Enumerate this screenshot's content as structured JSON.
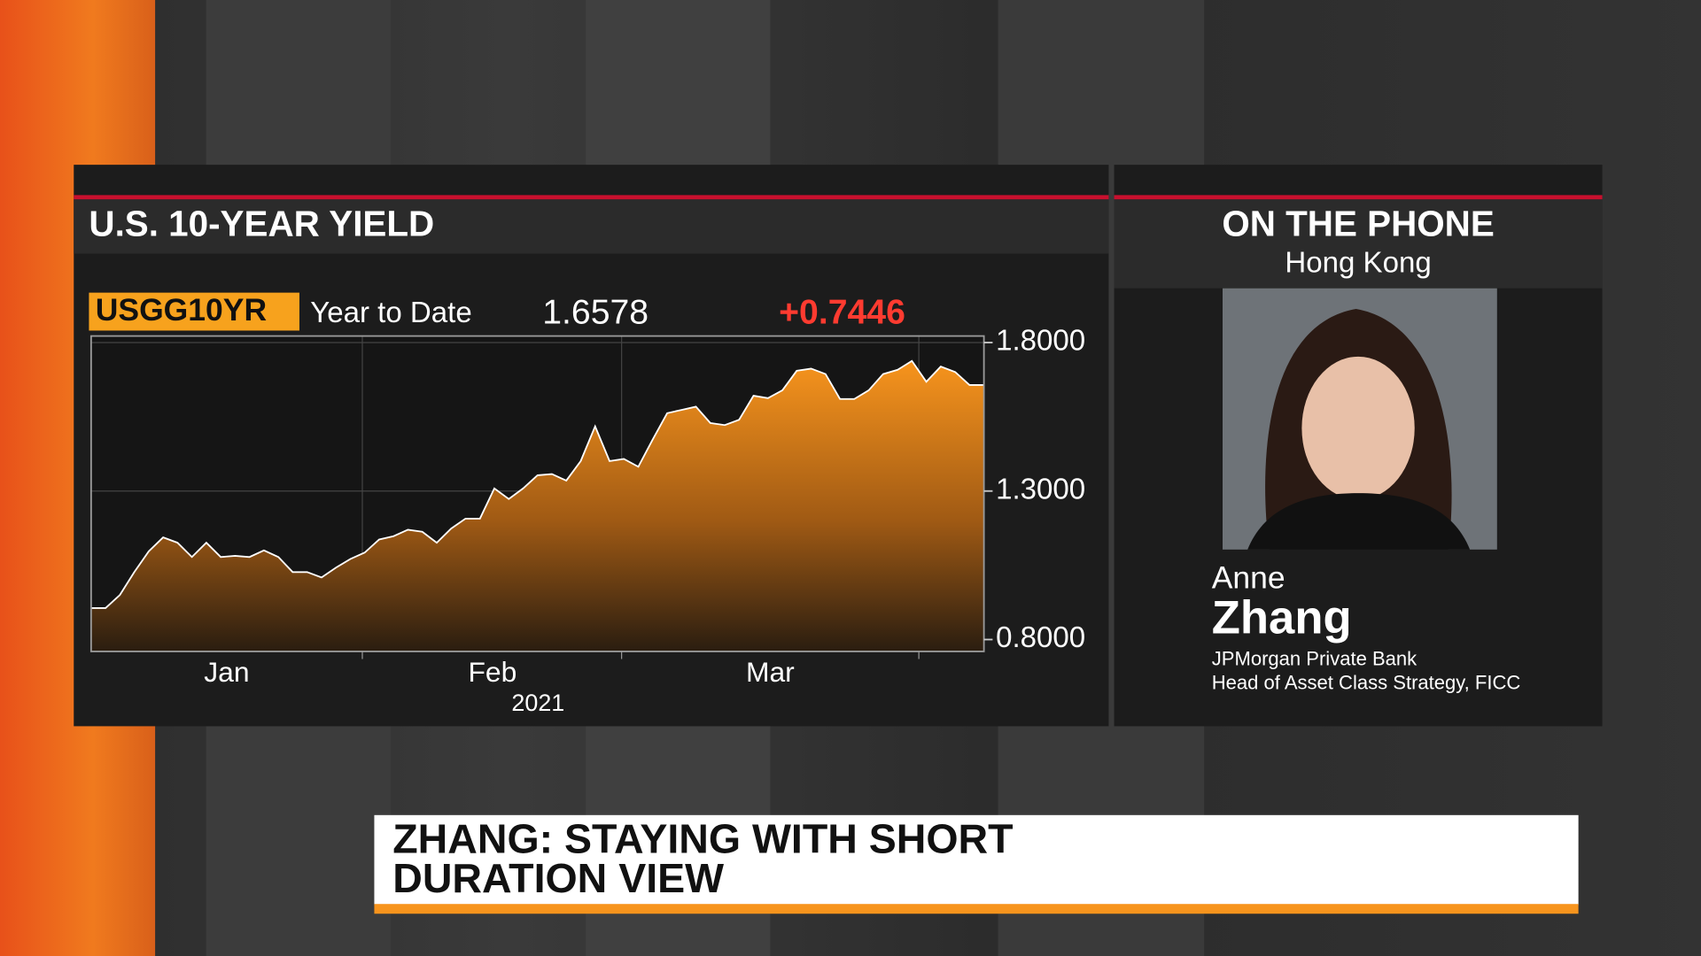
{
  "chart_data": {
    "type": "area",
    "title": "U.S. 10-YEAR YIELD",
    "ticker": "USGG10YR",
    "period": "Year to Date",
    "last_value": 1.6578,
    "change": "+0.7446",
    "color": "#f7941d",
    "values": [
      0.906,
      0.906,
      0.95,
      1.027,
      1.097,
      1.144,
      1.126,
      1.078,
      1.126,
      1.078,
      1.082,
      1.078,
      1.1,
      1.078,
      1.027,
      1.027,
      1.009,
      1.042,
      1.071,
      1.093,
      1.137,
      1.148,
      1.17,
      1.163,
      1.126,
      1.174,
      1.207,
      1.207,
      1.309,
      1.273,
      1.309,
      1.353,
      1.357,
      1.335,
      1.401,
      1.518,
      1.401,
      1.408,
      1.382,
      1.474,
      1.562,
      1.573,
      1.584,
      1.529,
      1.522,
      1.54,
      1.621,
      1.613,
      1.639,
      1.705,
      1.712,
      1.694,
      1.61,
      1.61,
      1.639,
      1.694,
      1.708,
      1.738,
      1.668,
      1.719,
      1.701,
      1.657,
      1.657
    ],
    "ylim": [
      0.76,
      1.822
    ],
    "yticks": [
      {
        "value": 1.8,
        "label": "1.8000"
      },
      {
        "value": 1.3,
        "label": "1.3000"
      },
      {
        "value": 0.8,
        "label": "0.8000"
      }
    ],
    "x_labels": [
      "Jan",
      "Feb",
      "Mar"
    ],
    "x_year": "2021"
  },
  "guest": {
    "heading": "ON THE PHONE",
    "location": "Hong Kong",
    "first_name": "Anne",
    "last_name": "Zhang",
    "organization": "JPMorgan Private Bank",
    "role": "Head of Asset Class Strategy, FICC"
  },
  "headline": {
    "lines": [
      "ZHANG: STAYING WITH SHORT",
      "DURATION VIEW"
    ]
  }
}
